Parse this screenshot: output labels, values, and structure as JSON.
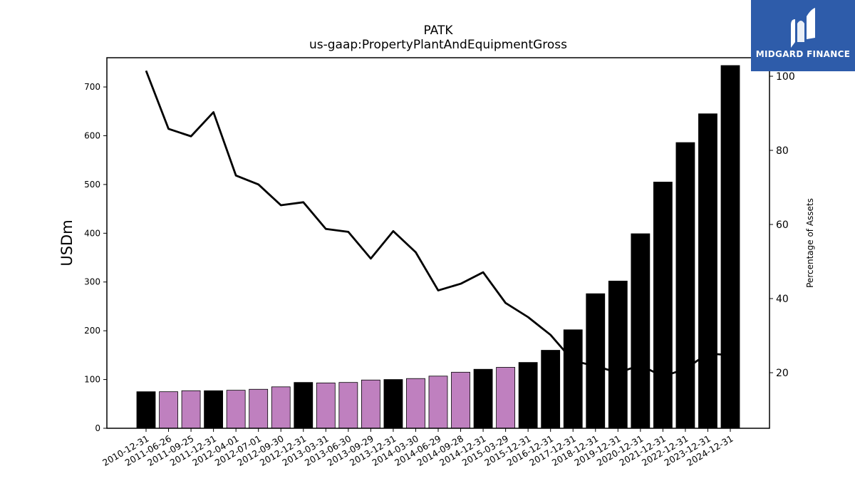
{
  "brand": {
    "name": "MIDGARD FINANCE"
  },
  "chart_data": {
    "type": "bar",
    "title": "PATK",
    "subtitle": "us-gaap:PropertyPlantAndEquipmentGross",
    "ylabel": "USDm",
    "y2label": "Percentage of Assets",
    "ylim": [
      0,
      760
    ],
    "y2lim": [
      5,
      105
    ],
    "yticks": [
      0,
      100,
      200,
      300,
      400,
      500,
      600,
      700
    ],
    "y2ticks": [
      20,
      40,
      60,
      80,
      100
    ],
    "categories": [
      "2010-12-31",
      "2011-06-26",
      "2011-09-25",
      "2011-12-31",
      "2012-04-01",
      "2012-07-01",
      "2012-09-30",
      "2012-12-31",
      "2013-03-31",
      "2013-06-30",
      "2013-09-29",
      "2013-12-31",
      "2014-03-30",
      "2014-06-29",
      "2014-09-28",
      "2014-12-31",
      "2015-03-29",
      "2015-12-31",
      "2016-12-31",
      "2017-12-31",
      "2018-12-31",
      "2019-12-31",
      "2020-12-31",
      "2021-12-31",
      "2022-12-31",
      "2023-12-31",
      "2024-12-31"
    ],
    "bar_values": [
      75,
      75,
      77,
      77,
      78,
      80,
      85,
      94,
      93,
      94,
      99,
      100,
      102,
      107,
      115,
      121,
      125,
      135,
      160,
      202,
      276,
      302,
      399,
      505,
      586,
      645,
      744
    ],
    "bar_period": [
      "annual",
      "quarterly",
      "quarterly",
      "annual",
      "quarterly",
      "quarterly",
      "quarterly",
      "annual",
      "quarterly",
      "quarterly",
      "quarterly",
      "annual",
      "quarterly",
      "quarterly",
      "quarterly",
      "annual",
      "quarterly",
      "annual",
      "annual",
      "annual",
      "annual",
      "annual",
      "annual",
      "annual",
      "annual",
      "annual",
      "annual"
    ],
    "bar_colors": {
      "annual": "#000000",
      "quarterly": "#bf80bf"
    },
    "line_series": {
      "values": [
        101.5,
        85.8,
        83.8,
        90.3,
        73.2,
        70.8,
        65.2,
        66.0,
        58.8,
        58.0,
        50.8,
        58.2,
        52.5,
        42.2,
        44.0,
        47.1,
        38.8,
        35.0,
        30.2,
        23.2,
        21.8,
        20.0,
        22.0,
        19.0,
        21.0,
        25.2,
        24.7
      ],
      "color": "#000000"
    },
    "grid": false
  }
}
